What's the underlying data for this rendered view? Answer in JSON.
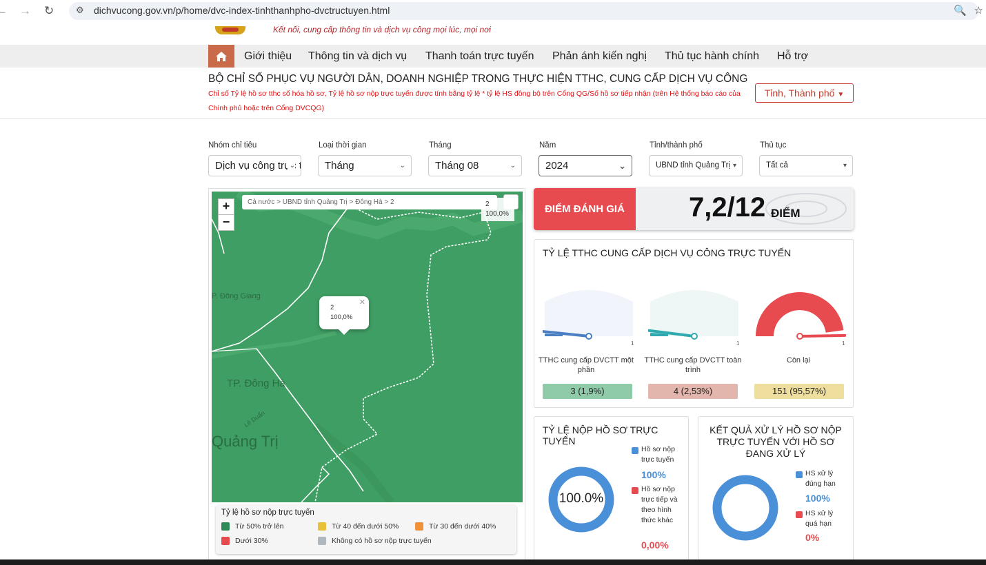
{
  "browser": {
    "url": "dichvucong.gov.vn/p/home/dvc-index-tinhthanhpho-dvctructuyen.html"
  },
  "header": {
    "tagline": "Kết nối, cung cấp thông tin và dịch vụ công mọi lúc, mọi nơi",
    "menu": [
      "Giới thiệu",
      "Thông tin và dịch vụ",
      "Thanh toán trực tuyến",
      "Phản ánh kiến nghị",
      "Thủ tục hành chính",
      "Hỗ trợ"
    ]
  },
  "page": {
    "title": "BỘ CHỈ SỐ PHỤC VỤ NGƯỜI DÂN, DOANH NGHIỆP TRONG THỰC HIỆN TTHC, CUNG CẤP DỊCH VỤ CÔNG",
    "subtitle": "Chỉ số Tỷ lệ hồ sơ tthc số hóa hồ sơ, Tỷ lệ hồ sơ nộp trực tuyến được tính bằng tỷ lệ * tỷ lệ HS đồng bộ trên Cổng QG/Số hồ sơ tiếp nhận (trên Hệ thống báo cáo của Chính phủ hoặc trên Cổng DVCQG)",
    "region_button": "Tỉnh, Thành phố"
  },
  "filters": {
    "group": {
      "label": "Nhóm chỉ tiêu",
      "value": "Dịch vụ công trực tuyến"
    },
    "time_type": {
      "label": "Loại thời gian",
      "value": "Tháng"
    },
    "month": {
      "label": "Tháng",
      "value": "Tháng 08"
    },
    "year": {
      "label": "Năm",
      "value": "2024"
    },
    "province": {
      "label": "Tỉnh/thành phố",
      "value": "UBND tỉnh Quảng Trị"
    },
    "procedure": {
      "label": "Thủ tục",
      "value": "Tất cả"
    }
  },
  "map": {
    "breadcrumb": "Cả nước > UBND tỉnh Quảng Trị > Đông Hà > 2",
    "corner_name": "2",
    "corner_value": "100,0%",
    "popup_name": "2",
    "popup_value": "100,0%",
    "labels": {
      "dong_giang": "P. Đông Giang",
      "tp_dong_ha": "TP. Đông Hà",
      "quang_tri": "Quảng Trị",
      "le_duan": "Lê Duẩn"
    },
    "fill_color": "#3f9e63",
    "legend": {
      "title": "Tỷ lệ hồ sơ nộp trực tuyến",
      "items": [
        {
          "label": "Từ 50% trở lên",
          "color": "#2e8b57"
        },
        {
          "label": "Từ 40 đến dưới 50%",
          "color": "#e8c13a"
        },
        {
          "label": "Từ 30 đến dưới 40%",
          "color": "#f0913a"
        },
        {
          "label": "Dưới 30%",
          "color": "#e84b4f"
        },
        {
          "label": "Không có hồ sơ nộp trực tuyến",
          "color": "#b0b8bf"
        }
      ]
    }
  },
  "score": {
    "label": "ĐIỂM ĐÁNH GIÁ",
    "value": "7,2/12",
    "unit": "ĐIỂM"
  },
  "dvctt": {
    "title": "TỶ LỆ TTHC CUNG CẤP DỊCH VỤ CÔNG TRỰC TUYẾN",
    "gauges": [
      {
        "caption": "TTHC cung cấp DVCTT một phần",
        "value_text": "3 (1,9%)",
        "fraction": 0.019,
        "max_label": "1",
        "color": "#4a7fc4",
        "bg": "#f1f5fb",
        "value_bg": "#8fcaa9"
      },
      {
        "caption": "TTHC cung cấp DVCTT toàn trình",
        "value_text": "4 (2,53%)",
        "fraction": 0.0253,
        "max_label": "1",
        "color": "#2eaab0",
        "bg": "#eef7f6",
        "value_bg": "#e3b6ad"
      },
      {
        "caption": "Còn lại",
        "value_text": "151 (95,57%)",
        "fraction": 0.9557,
        "max_label": "1",
        "color": "#e84b4f",
        "bg": "#e84b4f",
        "value_bg": "#eedf9e"
      }
    ]
  },
  "submission": {
    "title": "TỶ LỆ NỘP HỒ SƠ TRỰC TUYẾN",
    "center_text": "100.0%",
    "legend": [
      {
        "label": "Hồ sơ nộp trực tuyến",
        "pct": "100%",
        "color": "#4a90d9"
      },
      {
        "label": "Hồ sơ nộp trực tiếp và theo hình thức khác",
        "pct": "0,00%",
        "color": "#e84b4f"
      }
    ]
  },
  "processing": {
    "title": "KẾT QUẢ XỬ LÝ HỒ SƠ NỘP TRỰC TUYẾN VỚI HỒ SƠ ĐANG XỬ LÝ",
    "legend": [
      {
        "label": "HS xử lý đúng hạn",
        "pct": "100%",
        "color": "#4a90d9"
      },
      {
        "label": "HS xử lý quá hạn",
        "pct": "0%",
        "color": "#e84b4f"
      }
    ]
  }
}
